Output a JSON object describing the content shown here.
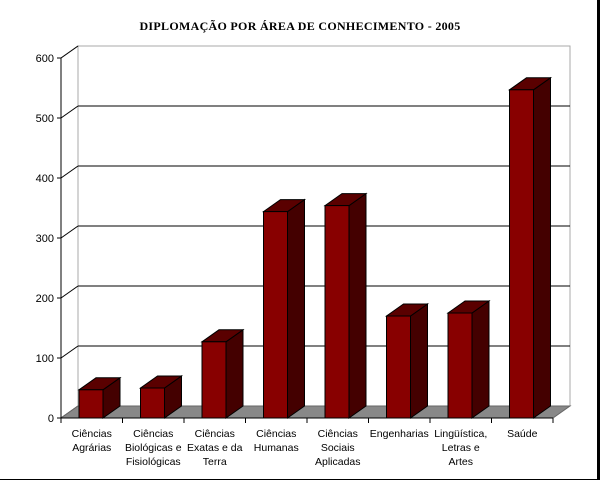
{
  "chart_data": {
    "type": "bar",
    "title": "DIPLOMAÇÃO POR ÁREA DE CONHECIMENTO - 2005",
    "xlabel": "",
    "ylabel": "",
    "ylim": [
      0,
      600
    ],
    "yticks": [
      0,
      100,
      200,
      300,
      400,
      500,
      600
    ],
    "grid": true,
    "legend": "none",
    "categories": [
      [
        "Ciências",
        "Agrárias"
      ],
      [
        "Ciências",
        "Biológicas e",
        "Fisiológicas"
      ],
      [
        "Ciências",
        "Exatas e da",
        "Terra"
      ],
      [
        "Ciências",
        "Humanas"
      ],
      [
        "Ciências",
        "Sociais",
        "Aplicadas"
      ],
      [
        "Engenharias"
      ],
      [
        "Lingüística,",
        "Letras e",
        "Artes"
      ],
      [
        "Saúde"
      ]
    ],
    "values": [
      47,
      50,
      127,
      344,
      354,
      170,
      175,
      547
    ],
    "colors": {
      "front": "#880000",
      "top": "#5a0000",
      "side": "#440000",
      "floor": "#888888"
    }
  }
}
